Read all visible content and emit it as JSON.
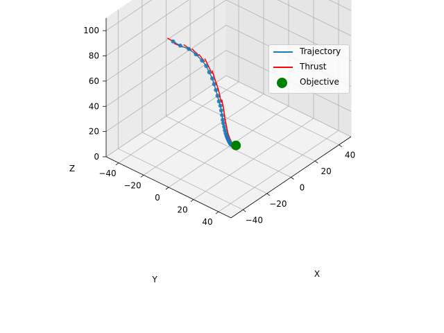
{
  "chart_data": {
    "type": "line3d",
    "xlabel": "X",
    "ylabel": "Y",
    "zlabel": "Z",
    "xticks": [
      "−40",
      "−20",
      "0",
      "20",
      "40"
    ],
    "yticks": [
      "40",
      "20",
      "0",
      "−20",
      "−40"
    ],
    "zticks": [
      "0",
      "20",
      "40",
      "60",
      "80",
      "100"
    ],
    "xlim": [
      -50,
      50
    ],
    "ylim": [
      -50,
      50
    ],
    "zlim": [
      0,
      110
    ],
    "grid": true,
    "legend_position": "top-right",
    "legend": [
      {
        "label": "Trajectory",
        "kind": "line",
        "color": "#1f77b4"
      },
      {
        "label": "Thrust",
        "kind": "line",
        "color": "#ff0000"
      },
      {
        "label": "Objective",
        "kind": "marker",
        "color": "#008000"
      }
    ],
    "trajectory": {
      "color": "#1f77b4",
      "x": [
        -38,
        -33,
        -27,
        -22,
        -18,
        -15,
        -13,
        -11,
        -10,
        -9,
        -8,
        -7,
        -6,
        -5.5,
        -5,
        -4.5,
        -4,
        -3.5,
        -3,
        -2.5,
        -2,
        -1.6,
        -1.2,
        -0.8,
        -0.5,
        -0.2,
        0,
        0.2,
        0.4,
        0.6,
        0.8,
        1.0,
        1.2,
        1.4,
        1.6,
        1.8,
        2.0,
        2.2,
        2.4,
        2.6,
        2.8,
        3.0,
        3.2,
        3.4
      ],
      "y": [
        -8,
        -7,
        -6,
        -5,
        -4,
        -3.5,
        -3,
        -2.5,
        -2,
        -1.5,
        -1.2,
        -1,
        -0.8,
        -0.6,
        -0.5,
        -0.4,
        -0.3,
        -0.2,
        -0.1,
        0,
        0.1,
        0.2,
        0.3,
        0.4,
        0.5,
        0.6,
        0.7,
        0.8,
        0.9,
        1.0,
        1.1,
        1.2,
        1.3,
        1.4,
        1.5,
        1.6,
        1.7,
        1.8,
        1.9,
        2.0,
        2.1,
        2.2,
        2.3,
        2.4
      ],
      "z": [
        104,
        98,
        92,
        85,
        78,
        72,
        66,
        60,
        55,
        50,
        45,
        40,
        36,
        32,
        28,
        24,
        21,
        18,
        15,
        12.5,
        10.5,
        9,
        7.6,
        6.4,
        5.4,
        4.6,
        3.9,
        3.3,
        2.8,
        2.3,
        1.9,
        1.6,
        1.3,
        1.0,
        0.8,
        0.6,
        0.45,
        0.33,
        0.23,
        0.15,
        0.09,
        0.05,
        0.02,
        0
      ]
    },
    "thrust_color": "#ff0000",
    "objective": {
      "x": 3.5,
      "y": 2.5,
      "z": 0,
      "color": "#008000"
    }
  }
}
